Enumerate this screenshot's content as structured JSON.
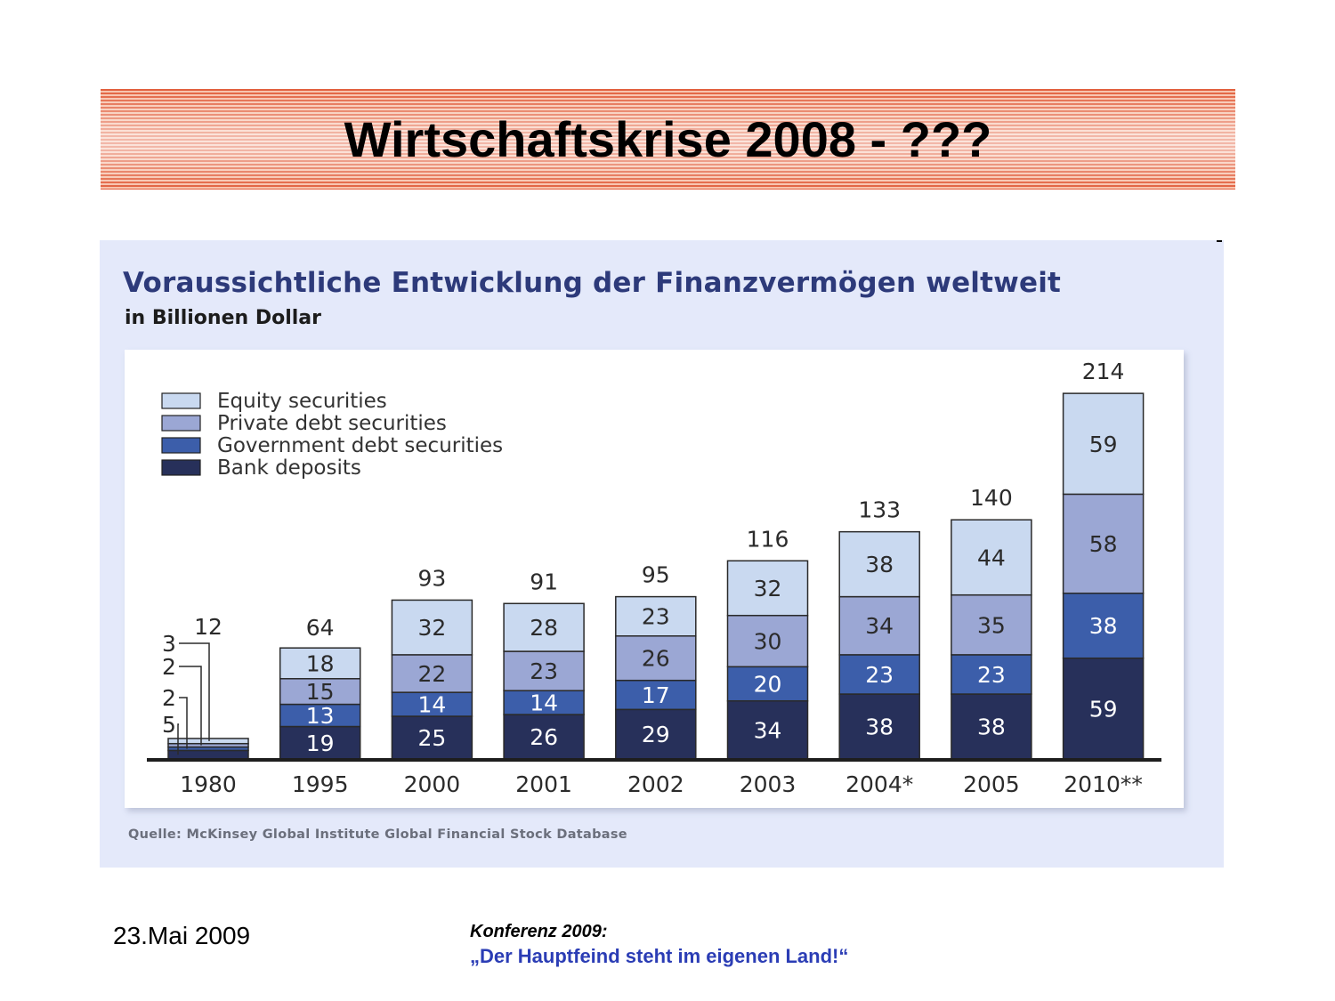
{
  "slide": {
    "title": "Wirtschaftskrise 2008 - ???",
    "footer_date": "23.Mai 2009",
    "footer_conference": "Konferenz 2009:",
    "footer_quote": "„Der Hauptfeind steht im eigenen Land!“"
  },
  "chart_data": {
    "type": "bar",
    "stacked": true,
    "title": "Voraussichtliche Entwicklung der Finanzvermögen weltweit",
    "subtitle": "in Billionen Dollar",
    "source": "Quelle: McKinsey Global Institute Global Financial Stock Database",
    "categories": [
      "1980",
      "1995",
      "2000",
      "2001",
      "2002",
      "2003",
      "2004*",
      "2005",
      "2010**"
    ],
    "totals": [
      12,
      64,
      93,
      91,
      95,
      116,
      133,
      140,
      214
    ],
    "series": [
      {
        "name": "Bank deposits",
        "color": "#27305a",
        "values": [
          5,
          19,
          25,
          26,
          29,
          34,
          38,
          38,
          59
        ]
      },
      {
        "name": "Government debt securities",
        "color": "#3c5eaa",
        "values": [
          2,
          13,
          14,
          14,
          17,
          20,
          23,
          23,
          38
        ]
      },
      {
        "name": "Private debt securities",
        "color": "#9ba7d4",
        "values": [
          2,
          15,
          22,
          23,
          26,
          30,
          34,
          35,
          58
        ]
      },
      {
        "name": "Equity securities",
        "color": "#c9d9f0",
        "values": [
          3,
          18,
          32,
          28,
          23,
          32,
          38,
          44,
          59
        ]
      }
    ],
    "legend": [
      "Equity securities",
      "Private debt securities",
      "Government debt securities",
      "Bank deposits"
    ],
    "legend_position": "top-left",
    "ylim": [
      0,
      214
    ],
    "xlabel": "",
    "ylabel": ""
  }
}
